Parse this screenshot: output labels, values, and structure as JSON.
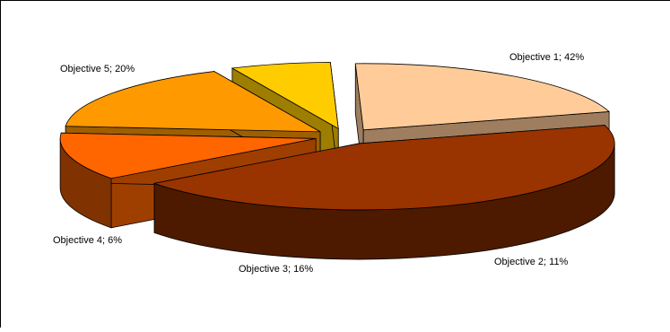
{
  "chart_data": {
    "type": "pie",
    "variant": "3d-exploded",
    "title": "",
    "categories": [
      "Objective 1",
      "Objective 2",
      "Objective 3",
      "Objective 4",
      "Objective 5"
    ],
    "values": [
      42,
      11,
      16,
      6,
      20
    ],
    "unit": "%",
    "data_labels": [
      "Objective 1; 42%",
      "Objective 2; 11%",
      "Objective 3; 16%",
      "Objective 4; 6%",
      "Objective 5; 20%"
    ],
    "colors": [
      "#993300",
      "#FF6600",
      "#FF9900",
      "#FFCC00",
      "#FFCC99"
    ],
    "legend": "none",
    "grid": false
  }
}
